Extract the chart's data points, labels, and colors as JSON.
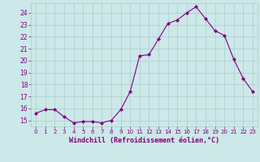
{
  "x": [
    0,
    1,
    2,
    3,
    4,
    5,
    6,
    7,
    8,
    9,
    10,
    11,
    12,
    13,
    14,
    15,
    16,
    17,
    18,
    19,
    20,
    21,
    22,
    23
  ],
  "y": [
    15.6,
    15.9,
    15.9,
    15.3,
    14.8,
    14.9,
    14.9,
    14.8,
    15.0,
    15.9,
    17.4,
    20.4,
    20.5,
    21.8,
    23.1,
    23.4,
    24.0,
    24.5,
    23.5,
    22.5,
    22.1,
    20.1,
    18.5,
    17.4
  ],
  "line_color": "#800080",
  "marker": "D",
  "marker_size": 2,
  "bg_color": "#cce8e8",
  "grid_color": "#aacccc",
  "xlabel": "Windchill (Refroidissement éolien,°C)",
  "xlabel_color": "#800080",
  "tick_color": "#800080",
  "ylim": [
    14.5,
    24.8
  ],
  "xlim": [
    -0.5,
    23.5
  ],
  "yticks": [
    15,
    16,
    17,
    18,
    19,
    20,
    21,
    22,
    23,
    24
  ],
  "xticks": [
    0,
    1,
    2,
    3,
    4,
    5,
    6,
    7,
    8,
    9,
    10,
    11,
    12,
    13,
    14,
    15,
    16,
    17,
    18,
    19,
    20,
    21,
    22,
    23
  ]
}
